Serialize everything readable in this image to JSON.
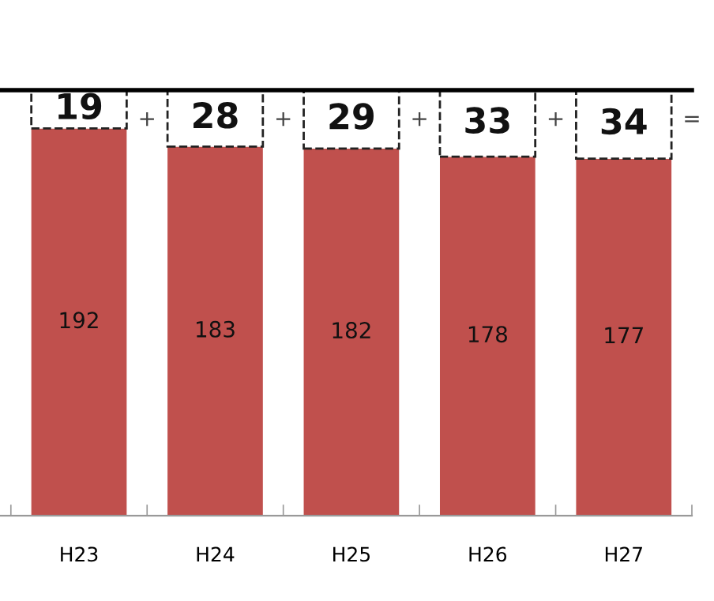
{
  "chart_data": {
    "type": "bar",
    "stacked": true,
    "categories": [
      "H23",
      "H24",
      "H25",
      "H26",
      "H27"
    ],
    "series": [
      {
        "color": "#c0504d",
        "values": [
          192,
          183,
          182,
          178,
          177
        ]
      },
      {
        "color": "#ffffff",
        "values": [
          19,
          28,
          29,
          33,
          34
        ]
      }
    ],
    "data_labels": true,
    "grid": false,
    "legend": false,
    "annotations": [
      "+",
      "+",
      "+",
      "+",
      "="
    ]
  }
}
